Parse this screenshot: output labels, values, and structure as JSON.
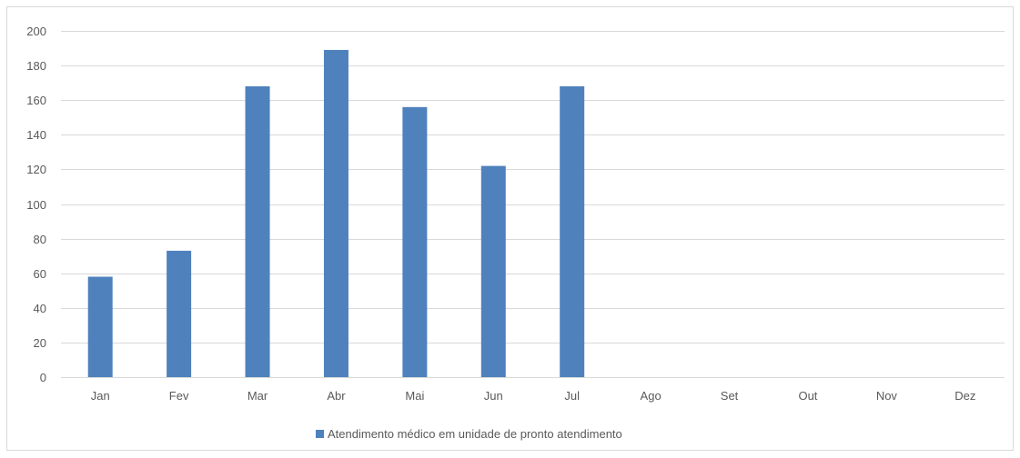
{
  "chart_data": {
    "type": "bar",
    "title": "",
    "xlabel": "",
    "ylabel": "",
    "ylim": [
      0,
      200
    ],
    "y_ticks": [
      0,
      20,
      40,
      60,
      80,
      100,
      120,
      140,
      160,
      180,
      200
    ],
    "grid": true,
    "legend_position": "bottom",
    "categories": [
      "Jan",
      "Fev",
      "Mar",
      "Abr",
      "Mai",
      "Jun",
      "Jul",
      "Ago",
      "Set",
      "Out",
      "Nov",
      "Dez"
    ],
    "series": [
      {
        "name": "Atendimento médico em unidade de pronto atendimento",
        "color": "#4f81bd",
        "values": [
          58,
          73,
          168,
          189,
          156,
          122,
          168,
          null,
          null,
          null,
          null,
          null
        ]
      }
    ]
  }
}
